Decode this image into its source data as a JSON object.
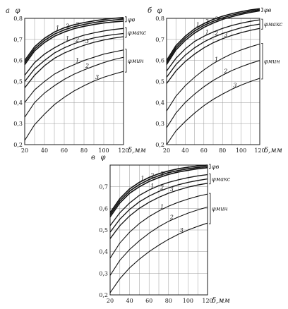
{
  "chart_data": [
    {
      "type": "line",
      "panel_label": "а",
      "y_axis_label": "φ",
      "x_axis_label": "δ,мм",
      "xlim": [
        20,
        120
      ],
      "ylim": [
        0.2,
        0.8
      ],
      "x_ticks": [
        "20",
        "40",
        "60",
        "80",
        "100",
        "120"
      ],
      "y_ticks": [
        "0,2",
        "0,3",
        "0,4",
        "0,5",
        "0,6",
        "0,7",
        "0,8"
      ],
      "grid": true,
      "groups": [
        {
          "label": "φв",
          "series": [
            {
              "name": "1",
              "x": [
                20,
                30,
                40,
                50,
                60,
                70,
                80,
                90,
                100,
                110,
                120
              ],
              "y": [
                0.6,
                0.665,
                0.705,
                0.735,
                0.755,
                0.77,
                0.78,
                0.788,
                0.795,
                0.8,
                0.804
              ]
            },
            {
              "name": "2",
              "x": [
                20,
                30,
                40,
                50,
                60,
                70,
                80,
                90,
                100,
                110,
                120
              ],
              "y": [
                0.59,
                0.655,
                0.695,
                0.725,
                0.745,
                0.76,
                0.771,
                0.78,
                0.787,
                0.792,
                0.796
              ]
            },
            {
              "name": "3",
              "x": [
                20,
                30,
                40,
                50,
                60,
                70,
                80,
                90,
                100,
                110,
                120
              ],
              "y": [
                0.58,
                0.645,
                0.685,
                0.715,
                0.735,
                0.751,
                0.762,
                0.771,
                0.778,
                0.783,
                0.787
              ]
            }
          ]
        },
        {
          "label": "φмакс",
          "series": [
            {
              "name": "1",
              "x": [
                20,
                30,
                40,
                50,
                60,
                70,
                80,
                90,
                100,
                110,
                120
              ],
              "y": [
                0.53,
                0.59,
                0.63,
                0.66,
                0.685,
                0.705,
                0.72,
                0.731,
                0.74,
                0.747,
                0.752
              ]
            },
            {
              "name": "2",
              "x": [
                20,
                30,
                40,
                50,
                60,
                70,
                80,
                90,
                100,
                110,
                120
              ],
              "y": [
                0.5,
                0.56,
                0.6,
                0.635,
                0.66,
                0.68,
                0.695,
                0.707,
                0.716,
                0.723,
                0.728
              ]
            },
            {
              "name": "3",
              "x": [
                20,
                30,
                40,
                50,
                60,
                70,
                80,
                90,
                100,
                110,
                120
              ],
              "y": [
                0.47,
                0.53,
                0.575,
                0.61,
                0.635,
                0.655,
                0.672,
                0.686,
                0.697,
                0.706,
                0.713
              ]
            }
          ]
        },
        {
          "label": "φмин",
          "series": [
            {
              "name": "1",
              "x": [
                20,
                30,
                40,
                50,
                60,
                70,
                80,
                90,
                100,
                110,
                120
              ],
              "y": [
                0.4,
                0.46,
                0.5,
                0.535,
                0.56,
                0.58,
                0.6,
                0.615,
                0.63,
                0.64,
                0.65
              ]
            },
            {
              "name": "2",
              "x": [
                20,
                30,
                40,
                50,
                60,
                70,
                80,
                90,
                100,
                110,
                120
              ],
              "y": [
                0.33,
                0.4,
                0.445,
                0.48,
                0.51,
                0.535,
                0.555,
                0.573,
                0.59,
                0.604,
                0.615
              ]
            },
            {
              "name": "3",
              "x": [
                20,
                30,
                40,
                50,
                60,
                70,
                80,
                90,
                100,
                110,
                120
              ],
              "y": [
                0.22,
                0.295,
                0.345,
                0.39,
                0.425,
                0.455,
                0.48,
                0.502,
                0.52,
                0.535,
                0.548
              ]
            }
          ]
        }
      ]
    },
    {
      "type": "line",
      "panel_label": "б",
      "y_axis_label": "φ",
      "x_axis_label": "δ,мм",
      "xlim": [
        20,
        120
      ],
      "ylim": [
        0.2,
        0.8
      ],
      "x_ticks": [
        "20",
        "40",
        "60",
        "80",
        "100",
        "120"
      ],
      "y_ticks": [
        "0,2",
        "0,3",
        "0,4",
        "0,5",
        "0,6",
        "0,7",
        "0,8"
      ],
      "grid": true,
      "groups": [
        {
          "label": "φв",
          "series": [
            {
              "name": "1",
              "x": [
                20,
                30,
                40,
                50,
                60,
                70,
                80,
                90,
                100,
                110,
                120
              ],
              "y": [
                0.6,
                0.67,
                0.715,
                0.75,
                0.775,
                0.795,
                0.81,
                0.822,
                0.832,
                0.84,
                0.846
              ]
            },
            {
              "name": "2",
              "x": [
                20,
                30,
                40,
                50,
                60,
                70,
                80,
                90,
                100,
                110,
                120
              ],
              "y": [
                0.59,
                0.66,
                0.705,
                0.74,
                0.766,
                0.786,
                0.802,
                0.815,
                0.825,
                0.834,
                0.841
              ]
            },
            {
              "name": "3",
              "x": [
                20,
                30,
                40,
                50,
                60,
                70,
                80,
                90,
                100,
                110,
                120
              ],
              "y": [
                0.58,
                0.65,
                0.695,
                0.73,
                0.757,
                0.778,
                0.795,
                0.808,
                0.819,
                0.828,
                0.836
              ]
            }
          ]
        },
        {
          "label": "φмакс",
          "series": [
            {
              "name": "1",
              "x": [
                20,
                30,
                40,
                50,
                60,
                70,
                80,
                90,
                100,
                110,
                120
              ],
              "y": [
                0.55,
                0.61,
                0.655,
                0.69,
                0.715,
                0.735,
                0.752,
                0.766,
                0.777,
                0.786,
                0.793
              ]
            },
            {
              "name": "2",
              "x": [
                20,
                30,
                40,
                50,
                60,
                70,
                80,
                90,
                100,
                110,
                120
              ],
              "y": [
                0.52,
                0.58,
                0.625,
                0.66,
                0.688,
                0.71,
                0.728,
                0.742,
                0.755,
                0.765,
                0.773
              ]
            },
            {
              "name": "3",
              "x": [
                20,
                30,
                40,
                50,
                60,
                70,
                80,
                90,
                100,
                110,
                120
              ],
              "y": [
                0.49,
                0.55,
                0.595,
                0.63,
                0.66,
                0.684,
                0.703,
                0.719,
                0.732,
                0.743,
                0.752
              ]
            }
          ]
        },
        {
          "label": "φмин",
          "series": [
            {
              "name": "1",
              "x": [
                20,
                30,
                40,
                50,
                60,
                70,
                80,
                90,
                100,
                110,
                120
              ],
              "y": [
                0.36,
                0.43,
                0.48,
                0.52,
                0.555,
                0.585,
                0.61,
                0.632,
                0.65,
                0.665,
                0.678
              ]
            },
            {
              "name": "2",
              "x": [
                20,
                30,
                40,
                50,
                60,
                70,
                80,
                90,
                100,
                110,
                120
              ],
              "y": [
                0.28,
                0.35,
                0.4,
                0.44,
                0.475,
                0.505,
                0.53,
                0.552,
                0.57,
                0.586,
                0.6
              ]
            },
            {
              "name": "3",
              "x": [
                20,
                30,
                40,
                50,
                60,
                70,
                80,
                90,
                100,
                110,
                120
              ],
              "y": [
                0.2,
                0.265,
                0.31,
                0.35,
                0.385,
                0.415,
                0.44,
                0.463,
                0.483,
                0.5,
                0.515
              ]
            }
          ]
        }
      ]
    },
    {
      "type": "line",
      "panel_label": "в",
      "y_axis_label": "φ",
      "x_axis_label": "δ,мм",
      "xlim": [
        20,
        120
      ],
      "ylim": [
        0.2,
        0.8
      ],
      "x_ticks": [
        "20",
        "40",
        "60",
        "80",
        "100",
        "120"
      ],
      "y_ticks": [
        "0,2",
        "0,3",
        "0,4",
        "0,5",
        "0,6",
        "0,7"
      ],
      "grid": true,
      "groups": [
        {
          "label": "φв",
          "series": [
            {
              "name": "1",
              "x": [
                20,
                30,
                40,
                50,
                60,
                70,
                80,
                90,
                100,
                110,
                120
              ],
              "y": [
                0.58,
                0.645,
                0.69,
                0.72,
                0.743,
                0.76,
                0.773,
                0.783,
                0.79,
                0.796,
                0.8
              ]
            },
            {
              "name": "2",
              "x": [
                20,
                30,
                40,
                50,
                60,
                70,
                80,
                90,
                100,
                110,
                120
              ],
              "y": [
                0.57,
                0.635,
                0.68,
                0.71,
                0.733,
                0.751,
                0.765,
                0.775,
                0.783,
                0.789,
                0.794
              ]
            },
            {
              "name": "3",
              "x": [
                20,
                30,
                40,
                50,
                60,
                70,
                80,
                90,
                100,
                110,
                120
              ],
              "y": [
                0.56,
                0.625,
                0.67,
                0.7,
                0.724,
                0.742,
                0.757,
                0.768,
                0.776,
                0.783,
                0.788
              ]
            }
          ]
        },
        {
          "label": "φмакс",
          "series": [
            {
              "name": "1",
              "x": [
                20,
                30,
                40,
                50,
                60,
                70,
                80,
                90,
                100,
                110,
                120
              ],
              "y": [
                0.52,
                0.58,
                0.625,
                0.66,
                0.685,
                0.705,
                0.72,
                0.732,
                0.742,
                0.75,
                0.756
              ]
            },
            {
              "name": "2",
              "x": [
                20,
                30,
                40,
                50,
                60,
                70,
                80,
                90,
                100,
                110,
                120
              ],
              "y": [
                0.49,
                0.55,
                0.595,
                0.63,
                0.657,
                0.678,
                0.695,
                0.709,
                0.72,
                0.729,
                0.736
              ]
            },
            {
              "name": "3",
              "x": [
                20,
                30,
                40,
                50,
                60,
                70,
                80,
                90,
                100,
                110,
                120
              ],
              "y": [
                0.46,
                0.52,
                0.565,
                0.6,
                0.628,
                0.651,
                0.67,
                0.685,
                0.698,
                0.708,
                0.716
              ]
            }
          ]
        },
        {
          "label": "φмин",
          "series": [
            {
              "name": "1",
              "x": [
                20,
                30,
                40,
                50,
                60,
                70,
                80,
                90,
                100,
                110,
                120
              ],
              "y": [
                0.37,
                0.44,
                0.49,
                0.53,
                0.562,
                0.588,
                0.61,
                0.628,
                0.643,
                0.656,
                0.666
              ]
            },
            {
              "name": "2",
              "x": [
                20,
                30,
                40,
                50,
                60,
                70,
                80,
                90,
                100,
                110,
                120
              ],
              "y": [
                0.29,
                0.36,
                0.41,
                0.45,
                0.485,
                0.515,
                0.54,
                0.56,
                0.578,
                0.593,
                0.606
              ]
            },
            {
              "name": "3",
              "x": [
                20,
                30,
                40,
                50,
                60,
                70,
                80,
                90,
                100,
                110,
                120
              ],
              "y": [
                0.21,
                0.275,
                0.325,
                0.365,
                0.4,
                0.43,
                0.457,
                0.48,
                0.5,
                0.517,
                0.532
              ]
            }
          ]
        }
      ]
    }
  ]
}
